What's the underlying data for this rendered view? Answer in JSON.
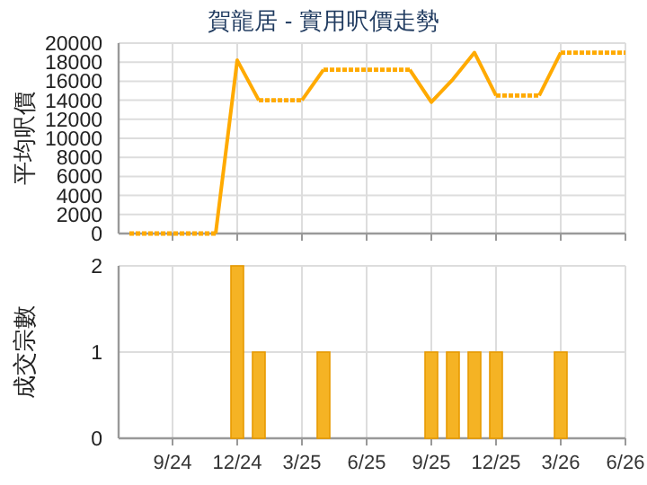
{
  "chart_data": [
    {
      "type": "line",
      "title": "賀龍居 - 實用呎價走勢",
      "ylabel": "平均呎價",
      "series": [
        {
          "color": "#ffaa00",
          "line_style": "solid",
          "x": [
            "2024-11",
            "2024-12",
            "2025-01"
          ],
          "values": [
            0,
            18200,
            14000
          ]
        },
        {
          "color": "#ffaa00",
          "line_style": "solid",
          "x": [
            "2025-03",
            "2025-04"
          ],
          "values": [
            14000,
            17200
          ]
        },
        {
          "color": "#ffaa00",
          "line_style": "solid",
          "x": [
            "2025-08",
            "2025-09",
            "2025-10",
            "2025-11",
            "2025-12"
          ],
          "values": [
            17200,
            13800,
            16200,
            19000,
            14500
          ]
        },
        {
          "color": "#ffaa00",
          "line_style": "solid",
          "x": [
            "2026-02",
            "2026-03"
          ],
          "values": [
            14500,
            19000
          ]
        },
        {
          "color": "#ffaa00",
          "line_style": "dotted",
          "x": [
            "2024-07",
            "2024-08",
            "2024-09",
            "2024-10",
            "2024-11"
          ],
          "values": [
            0,
            0,
            0,
            0,
            0
          ]
        },
        {
          "color": "#ffaa00",
          "line_style": "dotted",
          "x": [
            "2025-01",
            "2025-02",
            "2025-03"
          ],
          "values": [
            14000,
            14000,
            14000
          ]
        },
        {
          "color": "#ffaa00",
          "line_style": "dotted",
          "x": [
            "2025-04",
            "2025-05",
            "2025-06",
            "2025-07",
            "2025-08"
          ],
          "values": [
            17200,
            17200,
            17200,
            17200,
            17200
          ]
        },
        {
          "color": "#ffaa00",
          "line_style": "dotted",
          "x": [
            "2025-12",
            "2026-01",
            "2026-02"
          ],
          "values": [
            14500,
            14500,
            14500
          ]
        },
        {
          "color": "#ffaa00",
          "line_style": "dotted",
          "x": [
            "2026-03",
            "2026-04",
            "2026-05",
            "2026-06"
          ],
          "values": [
            19000,
            19000,
            19000,
            19000
          ]
        }
      ],
      "xlim": [
        "2024-06-16",
        "2026-06"
      ],
      "xticks": [
        {
          "value": "2024-09",
          "label": null
        },
        {
          "value": "2024-12",
          "label": null
        },
        {
          "value": "2025-03",
          "label": null
        },
        {
          "value": "2025-06",
          "label": null
        },
        {
          "value": "2025-09",
          "label": null
        },
        {
          "value": "2025-12",
          "label": null
        },
        {
          "value": "2026-03",
          "label": null
        },
        {
          "value": "2026-06",
          "label": null
        }
      ],
      "ylim": [
        0,
        20000
      ],
      "yticks": [
        0,
        2000,
        4000,
        6000,
        8000,
        10000,
        12000,
        14000,
        16000,
        18000,
        20000
      ],
      "grid": true,
      "tick_labels": "y"
    },
    {
      "type": "bar",
      "ylabel": "成交宗數",
      "x": [
        "2024-12",
        "2025-01",
        "2025-04",
        "2025-09",
        "2025-10",
        "2025-11",
        "2025-12",
        "2026-03"
      ],
      "values": [
        2,
        1,
        1,
        1,
        1,
        1,
        1,
        1
      ],
      "color": "#f5b324",
      "xlim": [
        "2024-06-16",
        "2026-06"
      ],
      "xticks": [
        {
          "value": "2024-09",
          "label": "9/24"
        },
        {
          "value": "2024-12",
          "label": "12/24"
        },
        {
          "value": "2025-03",
          "label": "3/25"
        },
        {
          "value": "2025-06",
          "label": "6/25"
        },
        {
          "value": "2025-09",
          "label": "9/25"
        },
        {
          "value": "2025-12",
          "label": "12/25"
        },
        {
          "value": "2026-03",
          "label": "3/26"
        },
        {
          "value": "2026-06",
          "label": "6/26"
        }
      ],
      "ylim": [
        0,
        2
      ],
      "yticks": [
        0,
        1,
        2
      ],
      "grid": true
    }
  ]
}
